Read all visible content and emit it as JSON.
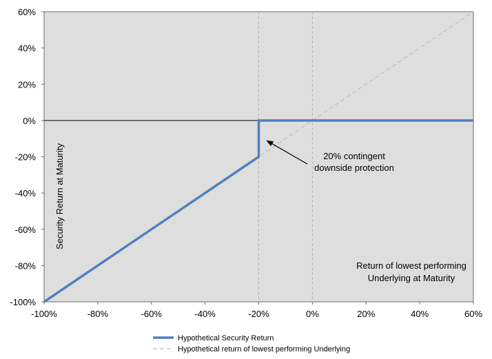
{
  "chart_data": {
    "type": "line",
    "title": "",
    "ylabel": "Security Return at Maturity",
    "xlabel_lines": [
      "Return of lowest performing",
      "Underlying at Maturity"
    ],
    "xlim": [
      -100,
      60
    ],
    "ylim": [
      -100,
      60
    ],
    "x_ticks": [
      -100,
      -80,
      -60,
      -40,
      -20,
      0,
      20,
      40,
      60
    ],
    "y_ticks": [
      -100,
      -80,
      -60,
      -40,
      -20,
      0,
      20,
      40,
      60
    ],
    "x_tick_labels": [
      "-100%",
      "-80%",
      "-60%",
      "-40%",
      "-20%",
      "0%",
      "20%",
      "40%",
      "60%"
    ],
    "y_tick_labels": [
      "-100%",
      "-80%",
      "-60%",
      "-40%",
      "-20%",
      "0%",
      "20%",
      "40%",
      "60%"
    ],
    "reference_x": [
      -20,
      0
    ],
    "series": [
      {
        "name": "Hypothetical Security Return",
        "style": "solid",
        "points": [
          [
            -100,
            -100
          ],
          [
            -20,
            -20
          ],
          [
            -20,
            0
          ],
          [
            60,
            0
          ]
        ]
      },
      {
        "name": "Hypothetical return of lowest performing Underlying",
        "style": "dashed",
        "points": [
          [
            -100,
            -100
          ],
          [
            60,
            60
          ]
        ]
      }
    ],
    "annotation": {
      "lines": [
        "20% contingent",
        "downside protection"
      ],
      "arrow_target": [
        -18,
        -10
      ]
    },
    "legend_position": "bottom",
    "colors": {
      "plot_background": "#dedede",
      "security_line": "#4f81bd",
      "underlying_line": "#bdbdbd",
      "reference_lines": "#b0b0b0",
      "zero_line": "#000000"
    }
  }
}
